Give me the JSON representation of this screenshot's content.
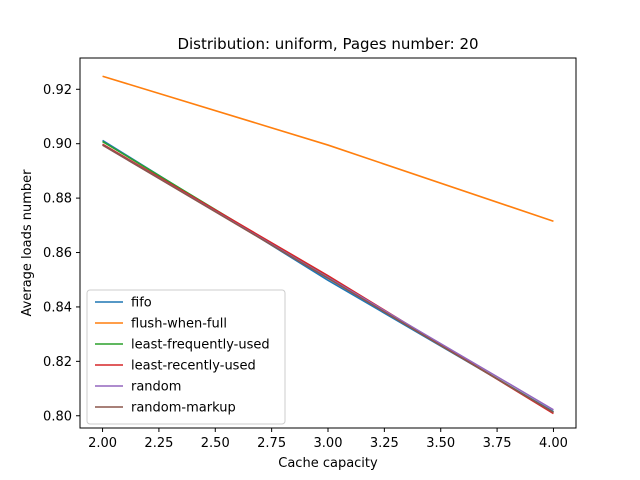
{
  "chart_data": {
    "type": "line",
    "title": "Distribution: uniform, Pages number: 20",
    "xlabel": "Cache capacity",
    "ylabel": "Average loads number",
    "xlim": [
      1.9,
      4.1
    ],
    "ylim": [
      0.7955,
      0.9315
    ],
    "x_ticks": [
      "2.00",
      "2.25",
      "2.50",
      "2.75",
      "3.00",
      "3.25",
      "3.50",
      "3.75",
      "4.00"
    ],
    "y_ticks": [
      "0.80",
      "0.82",
      "0.84",
      "0.86",
      "0.88",
      "0.90",
      "0.92"
    ],
    "x": [
      2,
      3,
      4
    ],
    "grid": false,
    "legend_position": "lower-left",
    "series": [
      {
        "name": "fifo",
        "color": "#1f77b4",
        "values": [
          0.9012,
          0.8498,
          0.8015
        ]
      },
      {
        "name": "flush-when-full",
        "color": "#ff7f0e",
        "values": [
          0.9248,
          0.8995,
          0.8715
        ]
      },
      {
        "name": "least-frequently-used",
        "color": "#2ca02c",
        "values": [
          0.9008,
          0.8508,
          0.8012
        ]
      },
      {
        "name": "least-recently-used",
        "color": "#d62728",
        "values": [
          0.8998,
          0.8515,
          0.8008
        ]
      },
      {
        "name": "random",
        "color": "#9467bd",
        "values": [
          0.8995,
          0.8508,
          0.8022
        ]
      },
      {
        "name": "random-markup",
        "color": "#8c564b",
        "values": [
          0.8995,
          0.8505,
          0.8012
        ]
      }
    ]
  }
}
